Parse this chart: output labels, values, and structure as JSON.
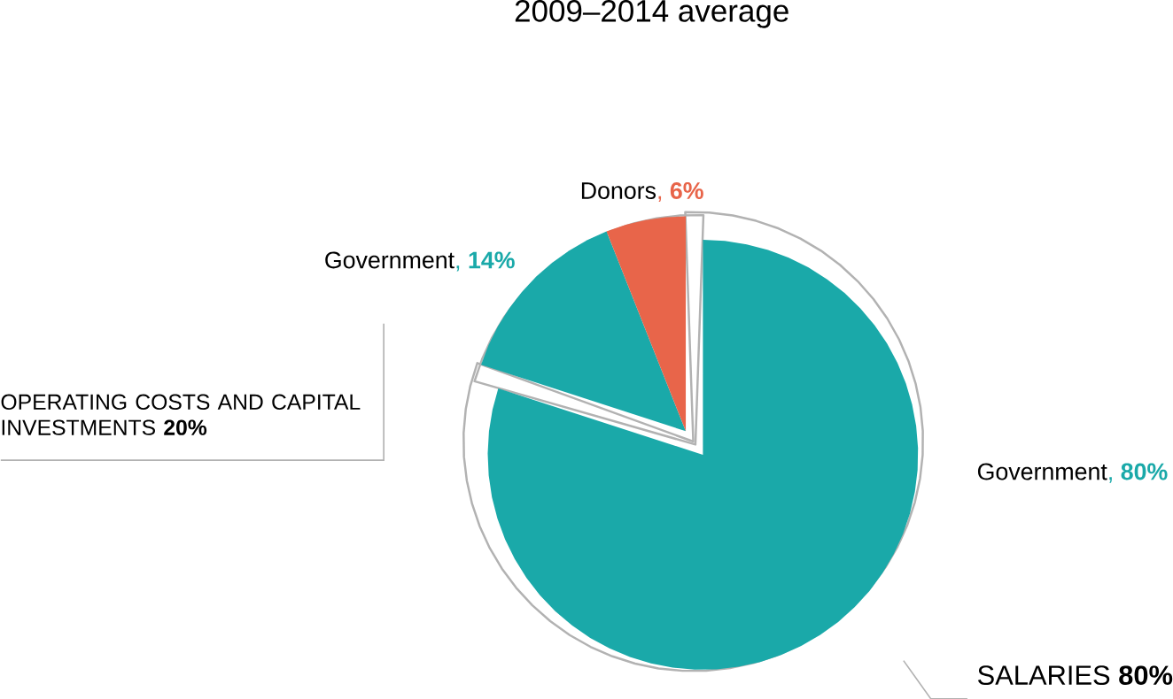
{
  "chart_data": {
    "type": "pie",
    "title": "2009–2014 average",
    "categories": [
      "Government",
      "Government",
      "Donors"
    ],
    "values": [
      80,
      14,
      6
    ],
    "value_labels": [
      ", **80%**",
      ", **14%**",
      ", **6%**"
    ],
    "colors": [
      "#1aa9a9",
      "#1aa9a9",
      "#e8654a"
    ],
    "annotations": [
      "SALARIES **80%**",
      "OPERATING COSTS AND CAPITAL INVESTMENTS **20%**"
    ]
  }
}
